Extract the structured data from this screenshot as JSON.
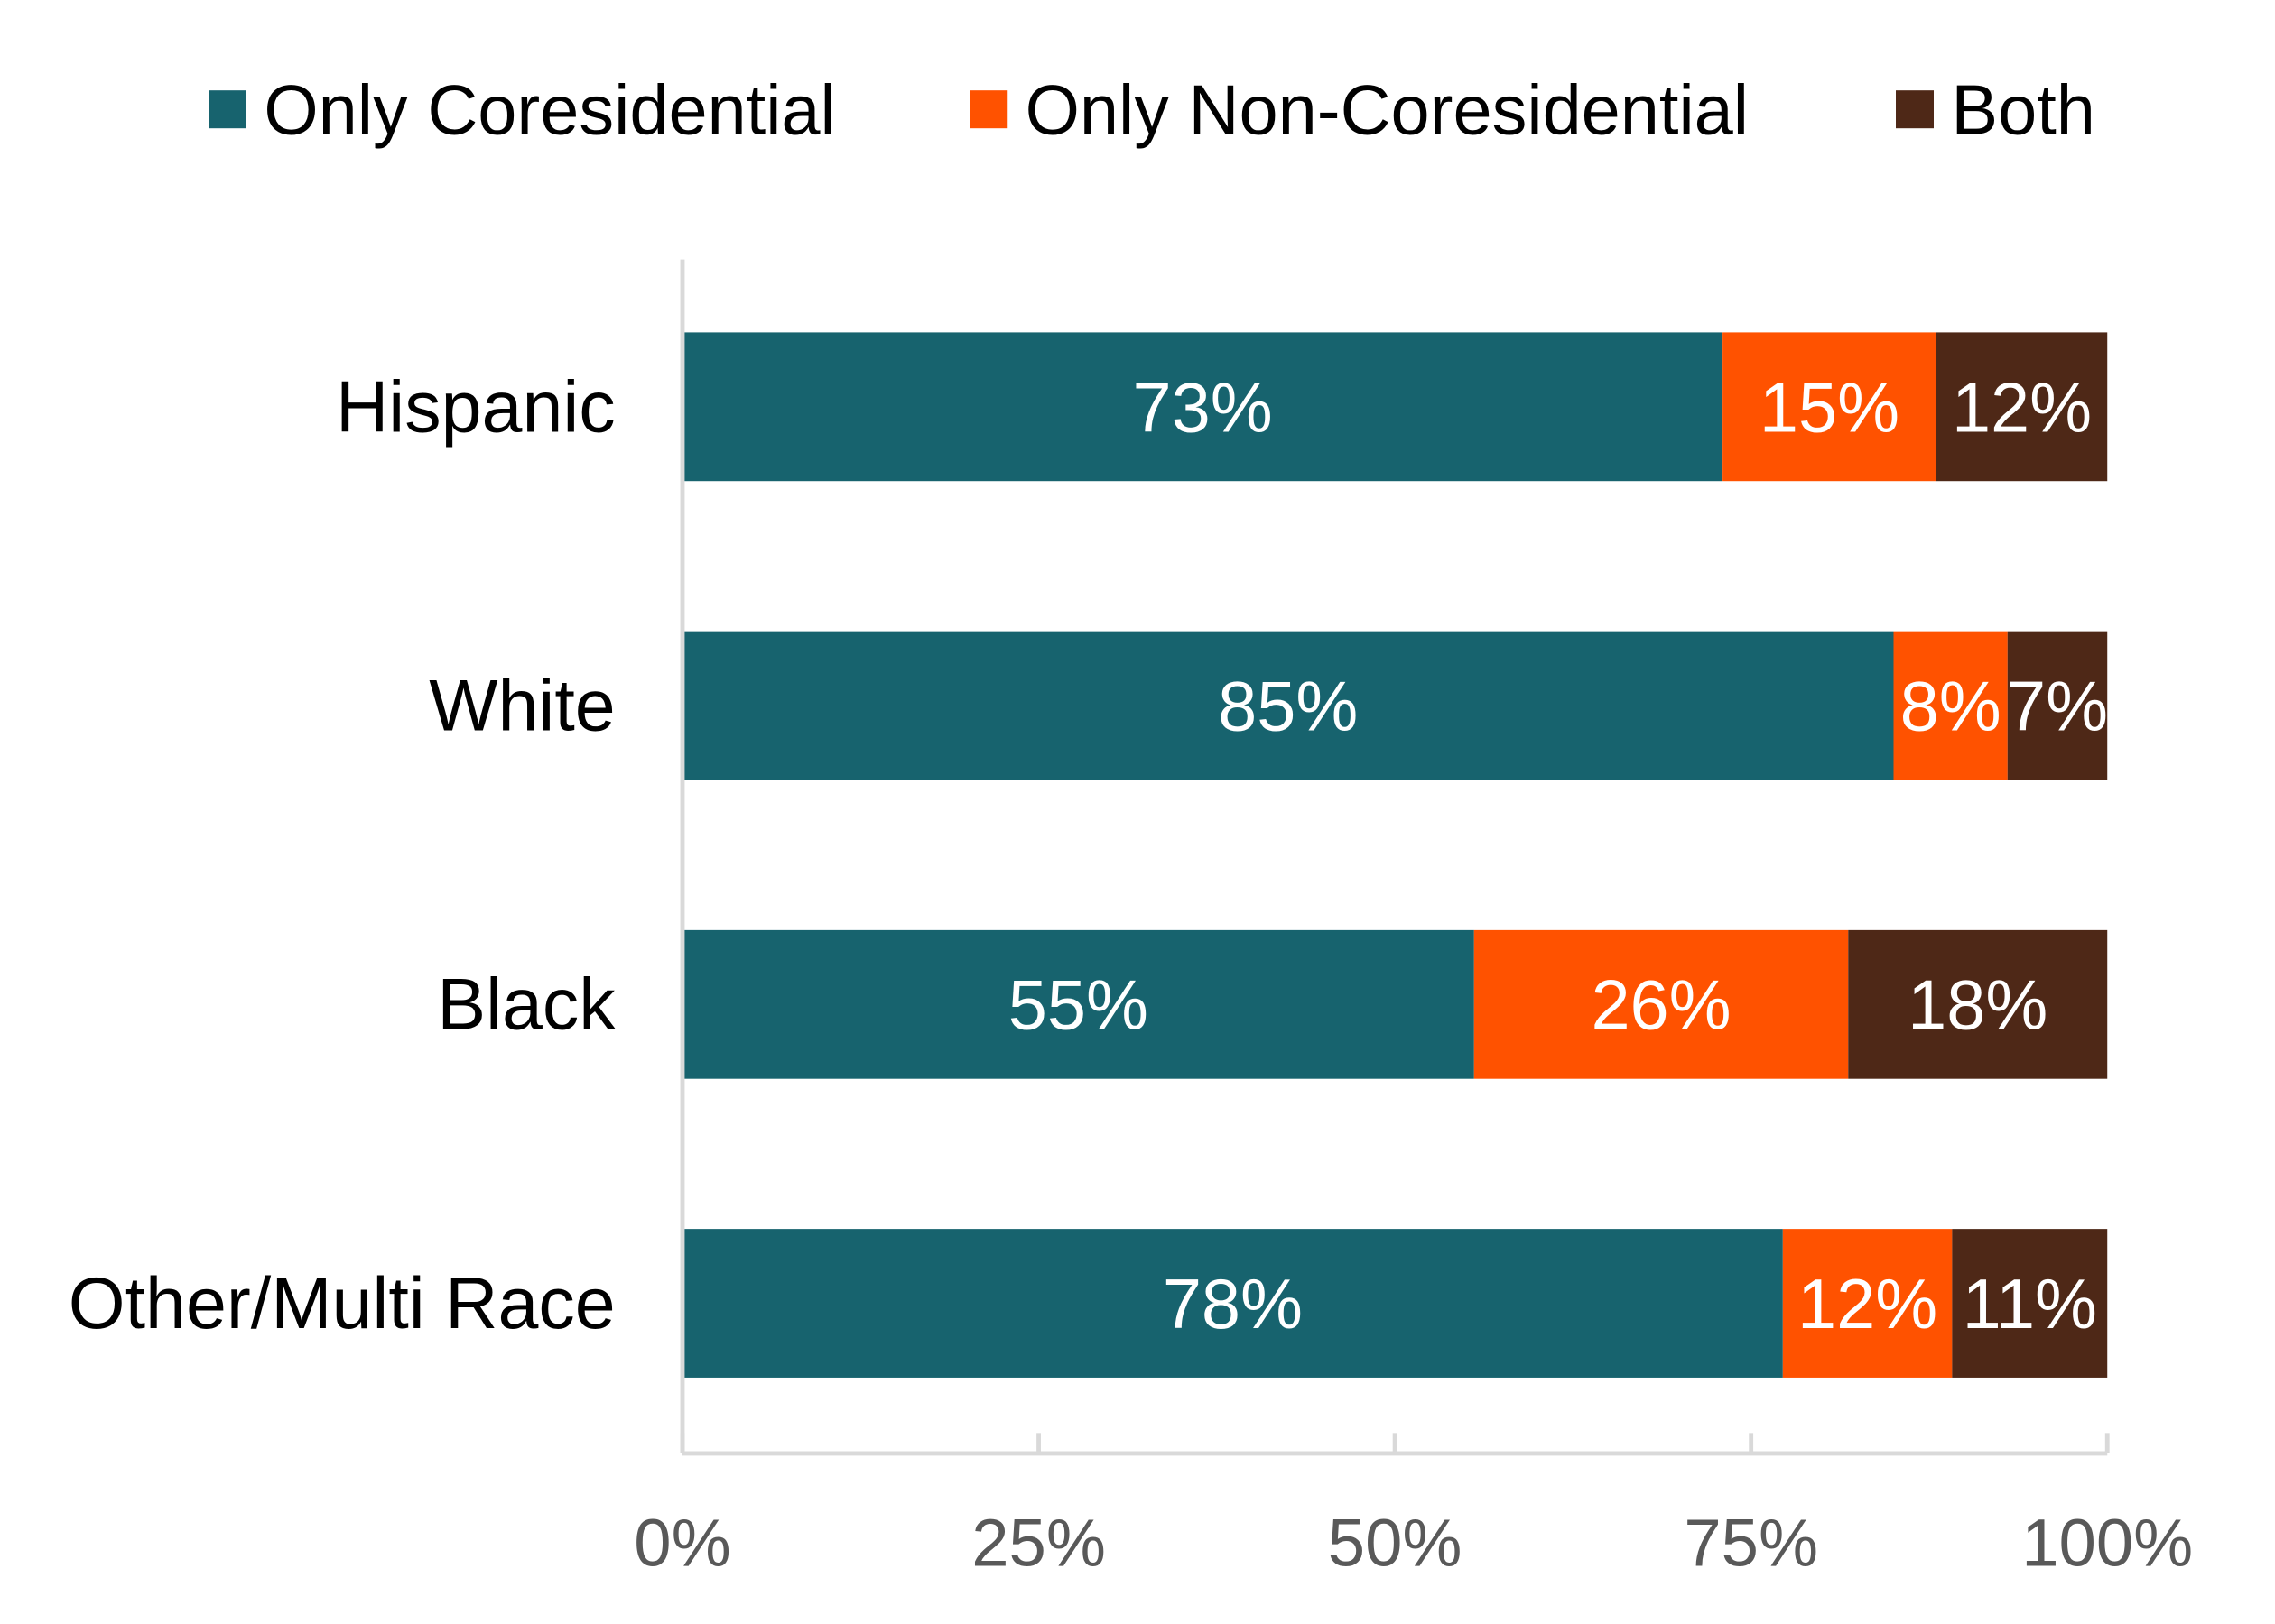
{
  "chart_data": {
    "type": "bar",
    "orientation": "horizontal",
    "stacked": true,
    "title": "",
    "xlabel": "",
    "ylabel": "",
    "categories": [
      "Hispanic",
      "White",
      "Black",
      "Other/Multi Race"
    ],
    "series": [
      {
        "name": "Only Coresidential",
        "color": "#17636E",
        "values": [
          73,
          85,
          55,
          78
        ]
      },
      {
        "name": "Only Non-Coresidential",
        "color": "#FF5200",
        "values": [
          15,
          8,
          26,
          12
        ]
      },
      {
        "name": "Both",
        "color": "#4E2817",
        "values": [
          12,
          7,
          18,
          11
        ]
      }
    ],
    "xlim": [
      0,
      100
    ],
    "xticks": [
      "0%",
      "25%",
      "50%",
      "75%",
      "100%"
    ],
    "value_suffix": "%",
    "legend_position": "top",
    "grid": false
  }
}
